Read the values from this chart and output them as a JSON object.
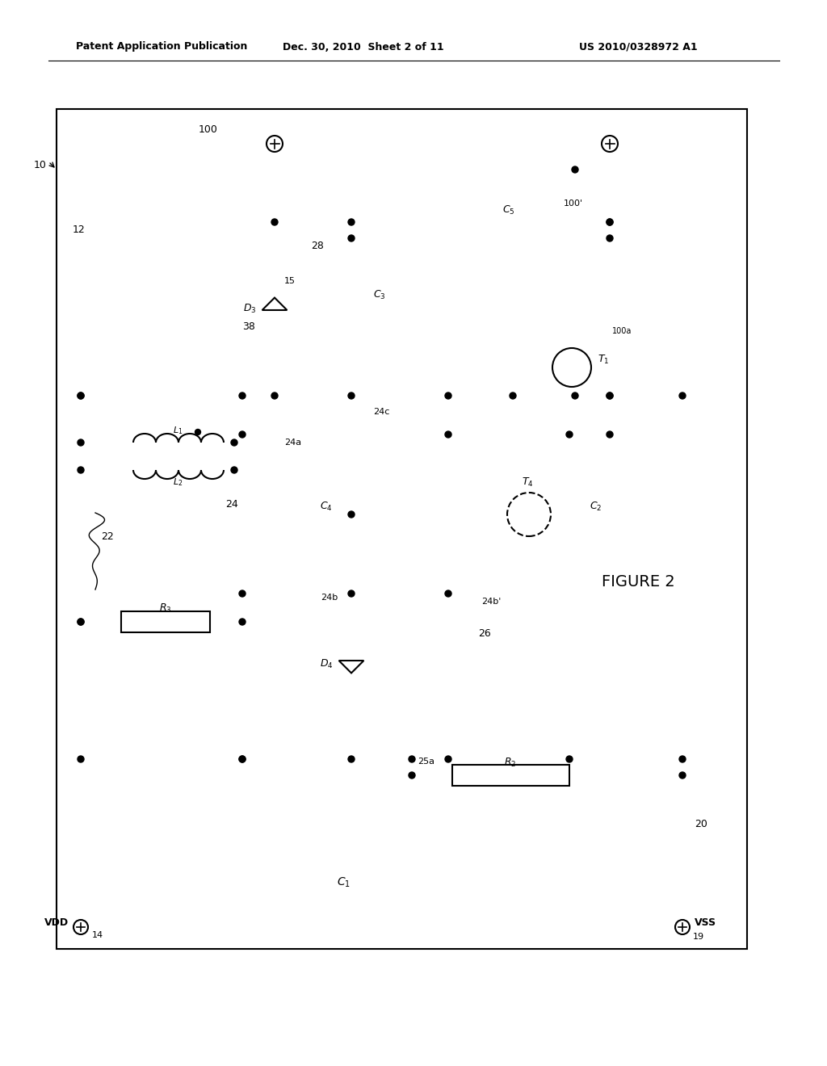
{
  "header_left": "Patent Application Publication",
  "header_mid": "Dec. 30, 2010  Sheet 2 of 11",
  "header_right": "US 2010/0328972 A1",
  "figure_label": "FIGURE 2",
  "bg_color": "#ffffff"
}
